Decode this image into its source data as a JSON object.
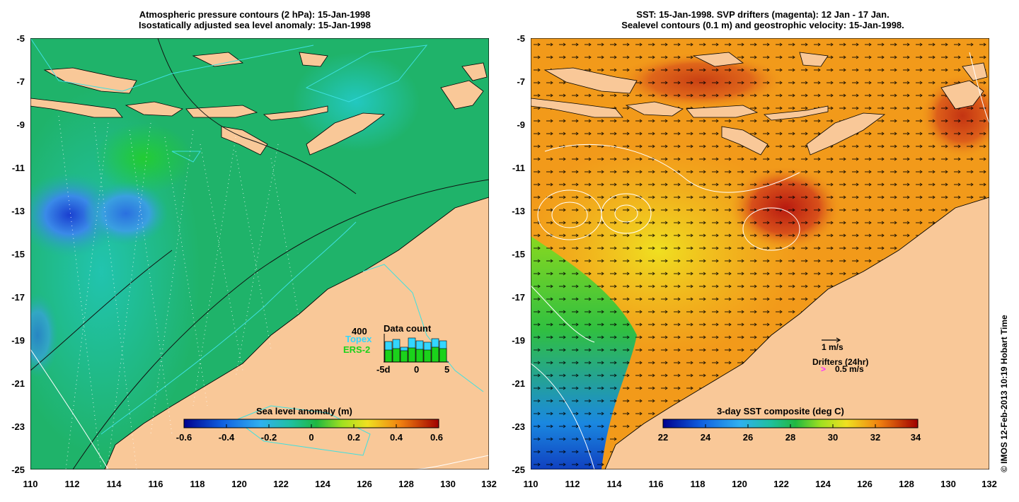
{
  "left_panel": {
    "title_line1": "Atmospheric pressure contours (2 hPa): 15-Jan-1998",
    "title_line2": "Isostatically adjusted sea level anomaly: 15-Jan-1998",
    "colorbar_title": "Sea level anomaly (m)",
    "colorbar_ticks": [
      "-0.6",
      "-0.4",
      "-0.2",
      "0",
      "0.2",
      "0.4",
      "0.6"
    ],
    "inset": {
      "title": "Data count",
      "max_label": "400",
      "topex_label": "Topex",
      "ers2_label": "ERS-2",
      "x_ticks": [
        "-5d",
        "0",
        "5"
      ],
      "topex_counts": [
        290,
        320,
        210,
        340,
        300,
        280,
        330,
        300
      ],
      "ers2_counts": [
        170,
        190,
        160,
        200,
        180,
        170,
        210,
        190
      ],
      "topex_color": "#33d6ff",
      "ers2_color": "#1bd21b"
    }
  },
  "right_panel": {
    "title_line1": "SST: 15-Jan-1998. SVP drifters (magenta): 12 Jan - 17 Jan.",
    "title_line2": "Sealevel contours (0.1 m) and geostrophic velocity: 15-Jan-1998.",
    "colorbar_title": "3-day SST composite (deg C)",
    "colorbar_ticks": [
      "22",
      "24",
      "26",
      "28",
      "30",
      "32",
      "34"
    ],
    "velocity_scale_label": "1 m/s",
    "drifters_label": "Drifters (24hr)",
    "drifter_scale_label": "0.5 m/s",
    "drifter_symbol": ">"
  },
  "axes": {
    "lat_ticks": [
      "-5",
      "-7",
      "-9",
      "-11",
      "-13",
      "-15",
      "-17",
      "-19",
      "-21",
      "-23",
      "-25"
    ],
    "lon_ticks": [
      "110",
      "112",
      "114",
      "116",
      "118",
      "120",
      "122",
      "124",
      "126",
      "128",
      "130",
      "132"
    ]
  },
  "credit": "© IMOS 12-Feb-2013 10:19 Hobart Time",
  "colors": {
    "land": "#f9c898",
    "ocean_left": "#1fb36a",
    "ocean_right": "#f29a1a",
    "magenta": "#ff33ff"
  }
}
